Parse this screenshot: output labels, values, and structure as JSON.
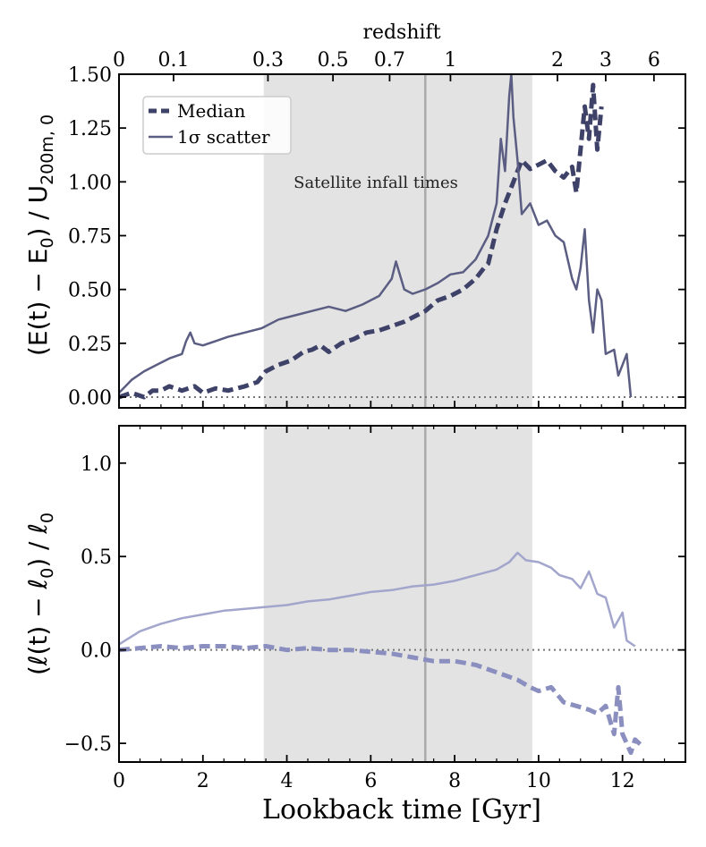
{
  "chart_data": [
    {
      "type": "line",
      "panel": "top",
      "ylabel": "(E(t) − E₀) / U₂₀₀ₘ,₀",
      "ylabel_parts": {
        "main": "(E(t) − E",
        "sub1": "0",
        "mid": ") / U",
        "sub2": "200m, 0"
      },
      "xlim": [
        0,
        13.5
      ],
      "ylim": [
        -0.05,
        1.5
      ],
      "yticks": [
        0.0,
        0.25,
        0.5,
        0.75,
        1.0,
        1.25,
        1.5
      ],
      "ytick_labels": [
        "0.00",
        "0.25",
        "0.50",
        "0.75",
        "1.00",
        "1.25",
        "1.50"
      ],
      "top_axis_label": "redshift",
      "top_ticks": [
        {
          "z": "0",
          "t": 0.0
        },
        {
          "z": "0.1",
          "t": 1.3
        },
        {
          "z": "0.3",
          "t": 3.55
        },
        {
          "z": "0.5",
          "t": 5.1
        },
        {
          "z": "0.7",
          "t": 6.45
        },
        {
          "z": "1",
          "t": 7.9
        },
        {
          "z": "2",
          "t": 10.45
        },
        {
          "z": "3",
          "t": 11.6
        },
        {
          "z": "6",
          "t": 12.75
        }
      ],
      "annotation": "Satellite infall times",
      "legend": {
        "position": "top-left",
        "entries": [
          "Median",
          "1σ scatter"
        ]
      },
      "series": [
        {
          "name": "Median",
          "style": "dashed",
          "color": "#3f4268",
          "x": [
            0,
            0.3,
            0.6,
            0.8,
            1.0,
            1.2,
            1.5,
            1.8,
            2.0,
            2.3,
            2.6,
            3.0,
            3.3,
            3.5,
            3.8,
            4.1,
            4.4,
            4.6,
            4.8,
            5.0,
            5.3,
            5.6,
            5.9,
            6.2,
            6.5,
            6.8,
            7.0,
            7.3,
            7.6,
            7.9,
            8.2,
            8.5,
            8.7,
            8.8,
            8.9,
            9.0,
            9.2,
            9.3,
            9.4,
            9.5,
            9.6,
            9.8,
            10.0,
            10.2,
            10.4,
            10.6,
            10.8,
            10.9,
            11.0,
            11.1,
            11.2,
            11.3,
            11.4,
            11.5
          ],
          "y": [
            0.0,
            0.02,
            0.0,
            0.03,
            0.03,
            0.05,
            0.03,
            0.05,
            0.02,
            0.04,
            0.03,
            0.05,
            0.07,
            0.12,
            0.15,
            0.17,
            0.21,
            0.22,
            0.24,
            0.21,
            0.25,
            0.27,
            0.3,
            0.31,
            0.33,
            0.35,
            0.37,
            0.4,
            0.45,
            0.47,
            0.5,
            0.55,
            0.6,
            0.62,
            0.7,
            0.78,
            0.9,
            0.95,
            1.0,
            1.05,
            1.1,
            1.06,
            1.08,
            1.1,
            1.05,
            1.02,
            1.07,
            0.95,
            1.15,
            1.35,
            1.2,
            1.45,
            1.15,
            1.35
          ]
        },
        {
          "name": "1σ scatter",
          "style": "solid",
          "color": "#5b5e82",
          "x": [
            0,
            0.3,
            0.6,
            0.9,
            1.2,
            1.5,
            1.6,
            1.7,
            1.8,
            2.0,
            2.3,
            2.6,
            3.0,
            3.4,
            3.8,
            4.2,
            4.6,
            5.0,
            5.4,
            5.8,
            6.2,
            6.5,
            6.6,
            6.8,
            7.0,
            7.3,
            7.6,
            7.9,
            8.2,
            8.5,
            8.8,
            9.0,
            9.1,
            9.2,
            9.3,
            9.35,
            9.4,
            9.5,
            9.6,
            9.8,
            10.0,
            10.2,
            10.4,
            10.6,
            10.8,
            10.9,
            11.0,
            11.1,
            11.2,
            11.3,
            11.4,
            11.5,
            11.6,
            11.8,
            11.9,
            12.0,
            12.1,
            12.2
          ],
          "y": [
            0.02,
            0.08,
            0.12,
            0.15,
            0.18,
            0.2,
            0.26,
            0.3,
            0.25,
            0.24,
            0.26,
            0.28,
            0.3,
            0.32,
            0.36,
            0.38,
            0.4,
            0.42,
            0.4,
            0.43,
            0.47,
            0.55,
            0.63,
            0.5,
            0.48,
            0.5,
            0.53,
            0.57,
            0.58,
            0.64,
            0.75,
            0.9,
            1.2,
            1.05,
            1.4,
            1.55,
            1.3,
            1.1,
            0.85,
            0.9,
            0.8,
            0.82,
            0.75,
            0.72,
            0.55,
            0.5,
            0.6,
            0.78,
            0.45,
            0.3,
            0.5,
            0.45,
            0.2,
            0.22,
            0.1,
            0.15,
            0.2,
            0.0
          ]
        }
      ]
    },
    {
      "type": "line",
      "panel": "bottom",
      "ylabel": "(ℓ(t) − ℓ₀) / ℓ₀",
      "ylabel_parts": {
        "main": "(ℓ(t) − ℓ",
        "sub1": "0",
        "mid": ") / ℓ",
        "sub2": "0"
      },
      "xlabel": "Lookback time [Gyr]",
      "xlim": [
        0,
        13.5
      ],
      "ylim": [
        -0.6,
        1.2
      ],
      "yticks": [
        -0.5,
        0.0,
        0.5,
        1.0
      ],
      "ytick_labels": [
        "−0.5",
        "0.0",
        "0.5",
        "1.0"
      ],
      "xticks": [
        0,
        2,
        4,
        6,
        8,
        10,
        12
      ],
      "xtick_labels": [
        "0",
        "2",
        "4",
        "6",
        "8",
        "10",
        "12"
      ],
      "series": [
        {
          "name": "Median",
          "style": "dashed",
          "color": "#8b8fc0",
          "x": [
            0,
            0.5,
            1.0,
            1.5,
            2.0,
            2.5,
            3.0,
            3.5,
            4.0,
            4.5,
            5.0,
            5.5,
            6.0,
            6.5,
            7.0,
            7.5,
            8.0,
            8.5,
            9.0,
            9.5,
            9.8,
            10.0,
            10.3,
            10.6,
            10.9,
            11.2,
            11.4,
            11.6,
            11.8,
            11.9,
            12.0,
            12.2,
            12.3,
            12.5
          ],
          "y": [
            0.0,
            0.01,
            0.02,
            0.01,
            0.02,
            0.02,
            0.01,
            0.02,
            0.0,
            0.01,
            0.0,
            0.0,
            -0.01,
            -0.02,
            -0.04,
            -0.06,
            -0.06,
            -0.08,
            -0.12,
            -0.16,
            -0.2,
            -0.22,
            -0.2,
            -0.28,
            -0.3,
            -0.32,
            -0.34,
            -0.3,
            -0.45,
            -0.2,
            -0.45,
            -0.55,
            -0.48,
            -0.52
          ]
        },
        {
          "name": "1σ scatter",
          "style": "solid",
          "color": "#a3a6cc",
          "x": [
            0,
            0.5,
            1.0,
            1.5,
            2.0,
            2.5,
            3.0,
            3.5,
            4.0,
            4.5,
            5.0,
            5.5,
            6.0,
            6.5,
            7.0,
            7.5,
            8.0,
            8.5,
            9.0,
            9.3,
            9.5,
            9.7,
            10.0,
            10.3,
            10.5,
            10.8,
            11.0,
            11.2,
            11.4,
            11.6,
            11.8,
            12.0,
            12.1,
            12.3
          ],
          "y": [
            0.03,
            0.1,
            0.14,
            0.17,
            0.19,
            0.21,
            0.22,
            0.23,
            0.24,
            0.26,
            0.27,
            0.29,
            0.31,
            0.32,
            0.34,
            0.35,
            0.37,
            0.4,
            0.43,
            0.47,
            0.52,
            0.48,
            0.47,
            0.44,
            0.4,
            0.38,
            0.33,
            0.42,
            0.3,
            0.28,
            0.12,
            0.2,
            0.05,
            0.02
          ]
        }
      ]
    }
  ],
  "shaded_region": {
    "x0": 3.45,
    "x1": 9.85,
    "vline": 7.3,
    "color": "#e3e3e3"
  },
  "reference_line": {
    "y": 0.0,
    "style": "dotted",
    "color": "#777777"
  }
}
